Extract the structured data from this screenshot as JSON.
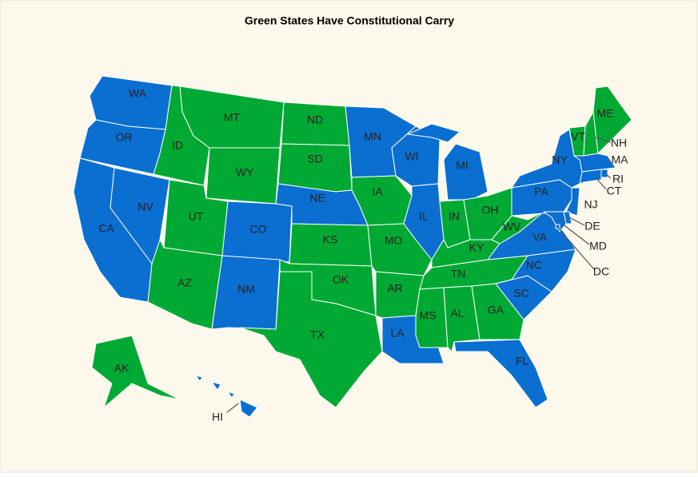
{
  "title": "Green States Have Constitutional Carry",
  "states": [
    {
      "label": "WA",
      "color": "#0a6fd1"
    },
    {
      "label": "OR",
      "color": "#0a6fd1"
    },
    {
      "label": "CA",
      "color": "#0a6fd1"
    },
    {
      "label": "NV",
      "color": "#0a6fd1"
    },
    {
      "label": "ID",
      "color": "#00a933"
    },
    {
      "label": "MT",
      "color": "#00a933"
    },
    {
      "label": "WY",
      "color": "#00a933"
    },
    {
      "label": "UT",
      "color": "#00a933"
    },
    {
      "label": "AZ",
      "color": "#00a933"
    },
    {
      "label": "CO",
      "color": "#0a6fd1"
    },
    {
      "label": "NM",
      "color": "#0a6fd1"
    },
    {
      "label": "ND",
      "color": "#00a933"
    },
    {
      "label": "SD",
      "color": "#00a933"
    },
    {
      "label": "NE",
      "color": "#0a6fd1"
    },
    {
      "label": "KS",
      "color": "#00a933"
    },
    {
      "label": "OK",
      "color": "#00a933"
    },
    {
      "label": "TX",
      "color": "#00a933"
    },
    {
      "label": "MN",
      "color": "#0a6fd1"
    },
    {
      "label": "IA",
      "color": "#00a933"
    },
    {
      "label": "MO",
      "color": "#00a933"
    },
    {
      "label": "AR",
      "color": "#00a933"
    },
    {
      "label": "LA",
      "color": "#0a6fd1"
    },
    {
      "label": "WI",
      "color": "#0a6fd1"
    },
    {
      "label": "IL",
      "color": "#0a6fd1"
    },
    {
      "label": "MI",
      "color": "#0a6fd1"
    },
    {
      "label": "IN",
      "color": "#00a933"
    },
    {
      "label": "OH",
      "color": "#00a933"
    },
    {
      "label": "KY",
      "color": "#00a933"
    },
    {
      "label": "TN",
      "color": "#00a933"
    },
    {
      "label": "MS",
      "color": "#00a933"
    },
    {
      "label": "AL",
      "color": "#00a933"
    },
    {
      "label": "GA",
      "color": "#00a933"
    },
    {
      "label": "FL",
      "color": "#0a6fd1"
    },
    {
      "label": "SC",
      "color": "#0a6fd1"
    },
    {
      "label": "NC",
      "color": "#0a6fd1"
    },
    {
      "label": "VA",
      "color": "#0a6fd1"
    },
    {
      "label": "WV",
      "color": "#00a933"
    },
    {
      "label": "PA",
      "color": "#0a6fd1"
    },
    {
      "label": "NY",
      "color": "#0a6fd1"
    },
    {
      "label": "VT",
      "color": "#00a933"
    },
    {
      "label": "NH",
      "color": "#00a933"
    },
    {
      "label": "ME",
      "color": "#00a933"
    },
    {
      "label": "MA",
      "color": "#0a6fd1"
    },
    {
      "label": "RI",
      "color": "#0a6fd1"
    },
    {
      "label": "CT",
      "color": "#0a6fd1"
    },
    {
      "label": "NJ",
      "color": "#0a6fd1"
    },
    {
      "label": "DE",
      "color": "#0a6fd1"
    },
    {
      "label": "MD",
      "color": "#0a6fd1"
    },
    {
      "label": "DC",
      "color": "#0a6fd1"
    },
    {
      "label": "AK",
      "color": "#00a933"
    },
    {
      "label": "HI",
      "color": "#0a6fd1"
    }
  ]
}
